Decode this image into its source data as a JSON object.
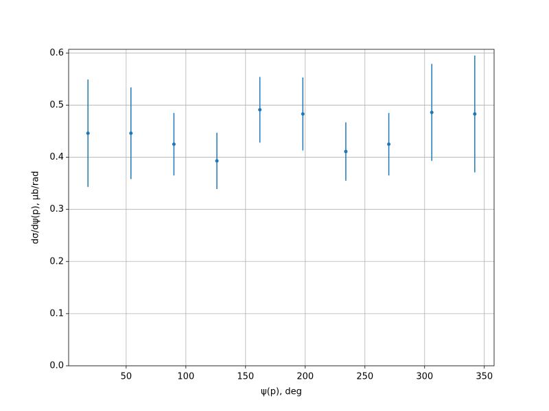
{
  "chart_data": {
    "type": "errorbar",
    "xlabel": "ψ(p), deg",
    "ylabel": "dσ/dψ(p), μb/rad",
    "x": [
      18,
      54,
      90,
      126,
      162,
      198,
      234,
      270,
      306,
      342
    ],
    "values": [
      0.446,
      0.446,
      0.425,
      0.393,
      0.491,
      0.483,
      0.411,
      0.425,
      0.486,
      0.483
    ],
    "errors": [
      0.103,
      0.088,
      0.06,
      0.054,
      0.063,
      0.07,
      0.056,
      0.06,
      0.093,
      0.112
    ],
    "color": "#1f77b4",
    "xlim": [
      1.8,
      358.2
    ],
    "xticks": [
      50,
      100,
      150,
      200,
      250,
      300,
      350
    ],
    "ylim": [
      0,
      0.607
    ],
    "yticks": [
      {
        "value": 0,
        "label": "0.0"
      },
      {
        "value": 0.1,
        "label": "0.1"
      },
      {
        "value": 0.2,
        "label": "0.2"
      },
      {
        "value": 0.3,
        "label": "0.3"
      },
      {
        "value": 0.4,
        "label": "0.4"
      },
      {
        "value": 0.5,
        "label": "0.5"
      },
      {
        "value": 0.6,
        "label": "0.6"
      }
    ],
    "grid": true
  }
}
